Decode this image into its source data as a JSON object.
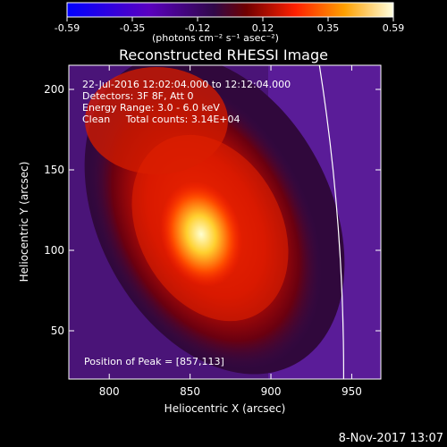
{
  "chart_data": {
    "type": "heatmap",
    "title": "Reconstructed RHESSI Image",
    "xlabel": "Heliocentric X (arcsec)",
    "ylabel": "Heliocentric Y (arcsec)",
    "xlim": [
      775,
      968
    ],
    "ylim": [
      20,
      215
    ],
    "x_ticks": [
      800,
      850,
      900,
      950
    ],
    "y_ticks": [
      50,
      100,
      150,
      200
    ],
    "colorbar": {
      "ticks": [
        "-0.59",
        "-0.35",
        "-0.12",
        "0.12",
        "0.35",
        "0.59"
      ],
      "range": [
        -0.59,
        0.59
      ],
      "units_line": "(photons cm⁻² s⁻¹ asec⁻²)",
      "colormap": [
        "#0000ff",
        "#6a00b0",
        "#3a0a5a",
        "#800000",
        "#ff2000",
        "#ffa000",
        "#ffff80",
        "#ffffff"
      ]
    },
    "annotations": [
      "22-Jul-2016 12:02:04.000 to 12:12:04.000",
      "Detectors: 3F 8F, Att 0",
      "Energy Range: 3.0 - 6.0 keV",
      "Clean     Total counts: 3.14E+04"
    ],
    "peak_label": "Position of Peak = [857,113]",
    "peak": [
      857,
      113
    ],
    "limb_arc": [
      [
        930,
        215
      ],
      [
        945,
        20
      ]
    ]
  },
  "footer_date": "8-Nov-2017 13:07"
}
